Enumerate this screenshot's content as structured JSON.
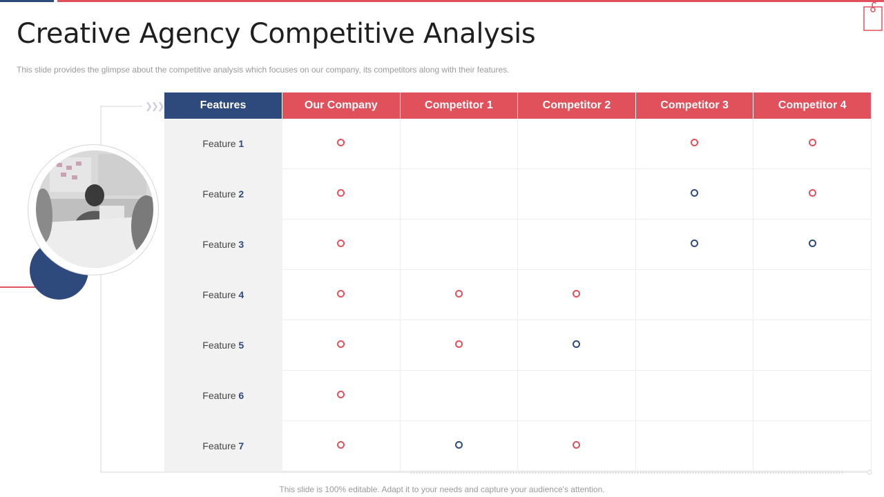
{
  "title": "Creative Agency Competitive Analysis",
  "subtitle": "This slide provides  the glimpse about the competitive  analysis which focuses on our company,  its competitors along with their features.",
  "footer": "This slide is 100% editable. Adapt it to your needs and capture your audience's attention.",
  "colors": {
    "accent_red": "#e0515b",
    "navy": "#2e4a7d",
    "feature_col_bg": "#f2f2f2"
  },
  "icons": {
    "tag": "tag-icon",
    "chevrons": "triple-chevron-right"
  },
  "photo": {
    "description": "meeting-photo"
  },
  "table": {
    "header_features": "Features",
    "columns": [
      "Our Company",
      "Competitor 1",
      "Competitor 2",
      "Competitor 3",
      "Competitor 4"
    ],
    "rows": [
      {
        "label": "Feature ",
        "num": "1",
        "marks": [
          "red",
          "",
          "",
          "red",
          "red"
        ]
      },
      {
        "label": "Feature ",
        "num": "2",
        "marks": [
          "red",
          "",
          "",
          "navy",
          "red"
        ]
      },
      {
        "label": "Feature ",
        "num": "3",
        "marks": [
          "red",
          "",
          "",
          "navy",
          "navy"
        ]
      },
      {
        "label": "Feature ",
        "num": "4",
        "marks": [
          "red",
          "red",
          "red",
          "",
          ""
        ]
      },
      {
        "label": "Feature ",
        "num": "5",
        "marks": [
          "red",
          "red",
          "navy",
          "",
          ""
        ]
      },
      {
        "label": "Feature ",
        "num": "6",
        "marks": [
          "red",
          "",
          "",
          "",
          ""
        ]
      },
      {
        "label": "Feature ",
        "num": "7",
        "marks": [
          "red",
          "navy",
          "red",
          "",
          ""
        ]
      }
    ]
  }
}
